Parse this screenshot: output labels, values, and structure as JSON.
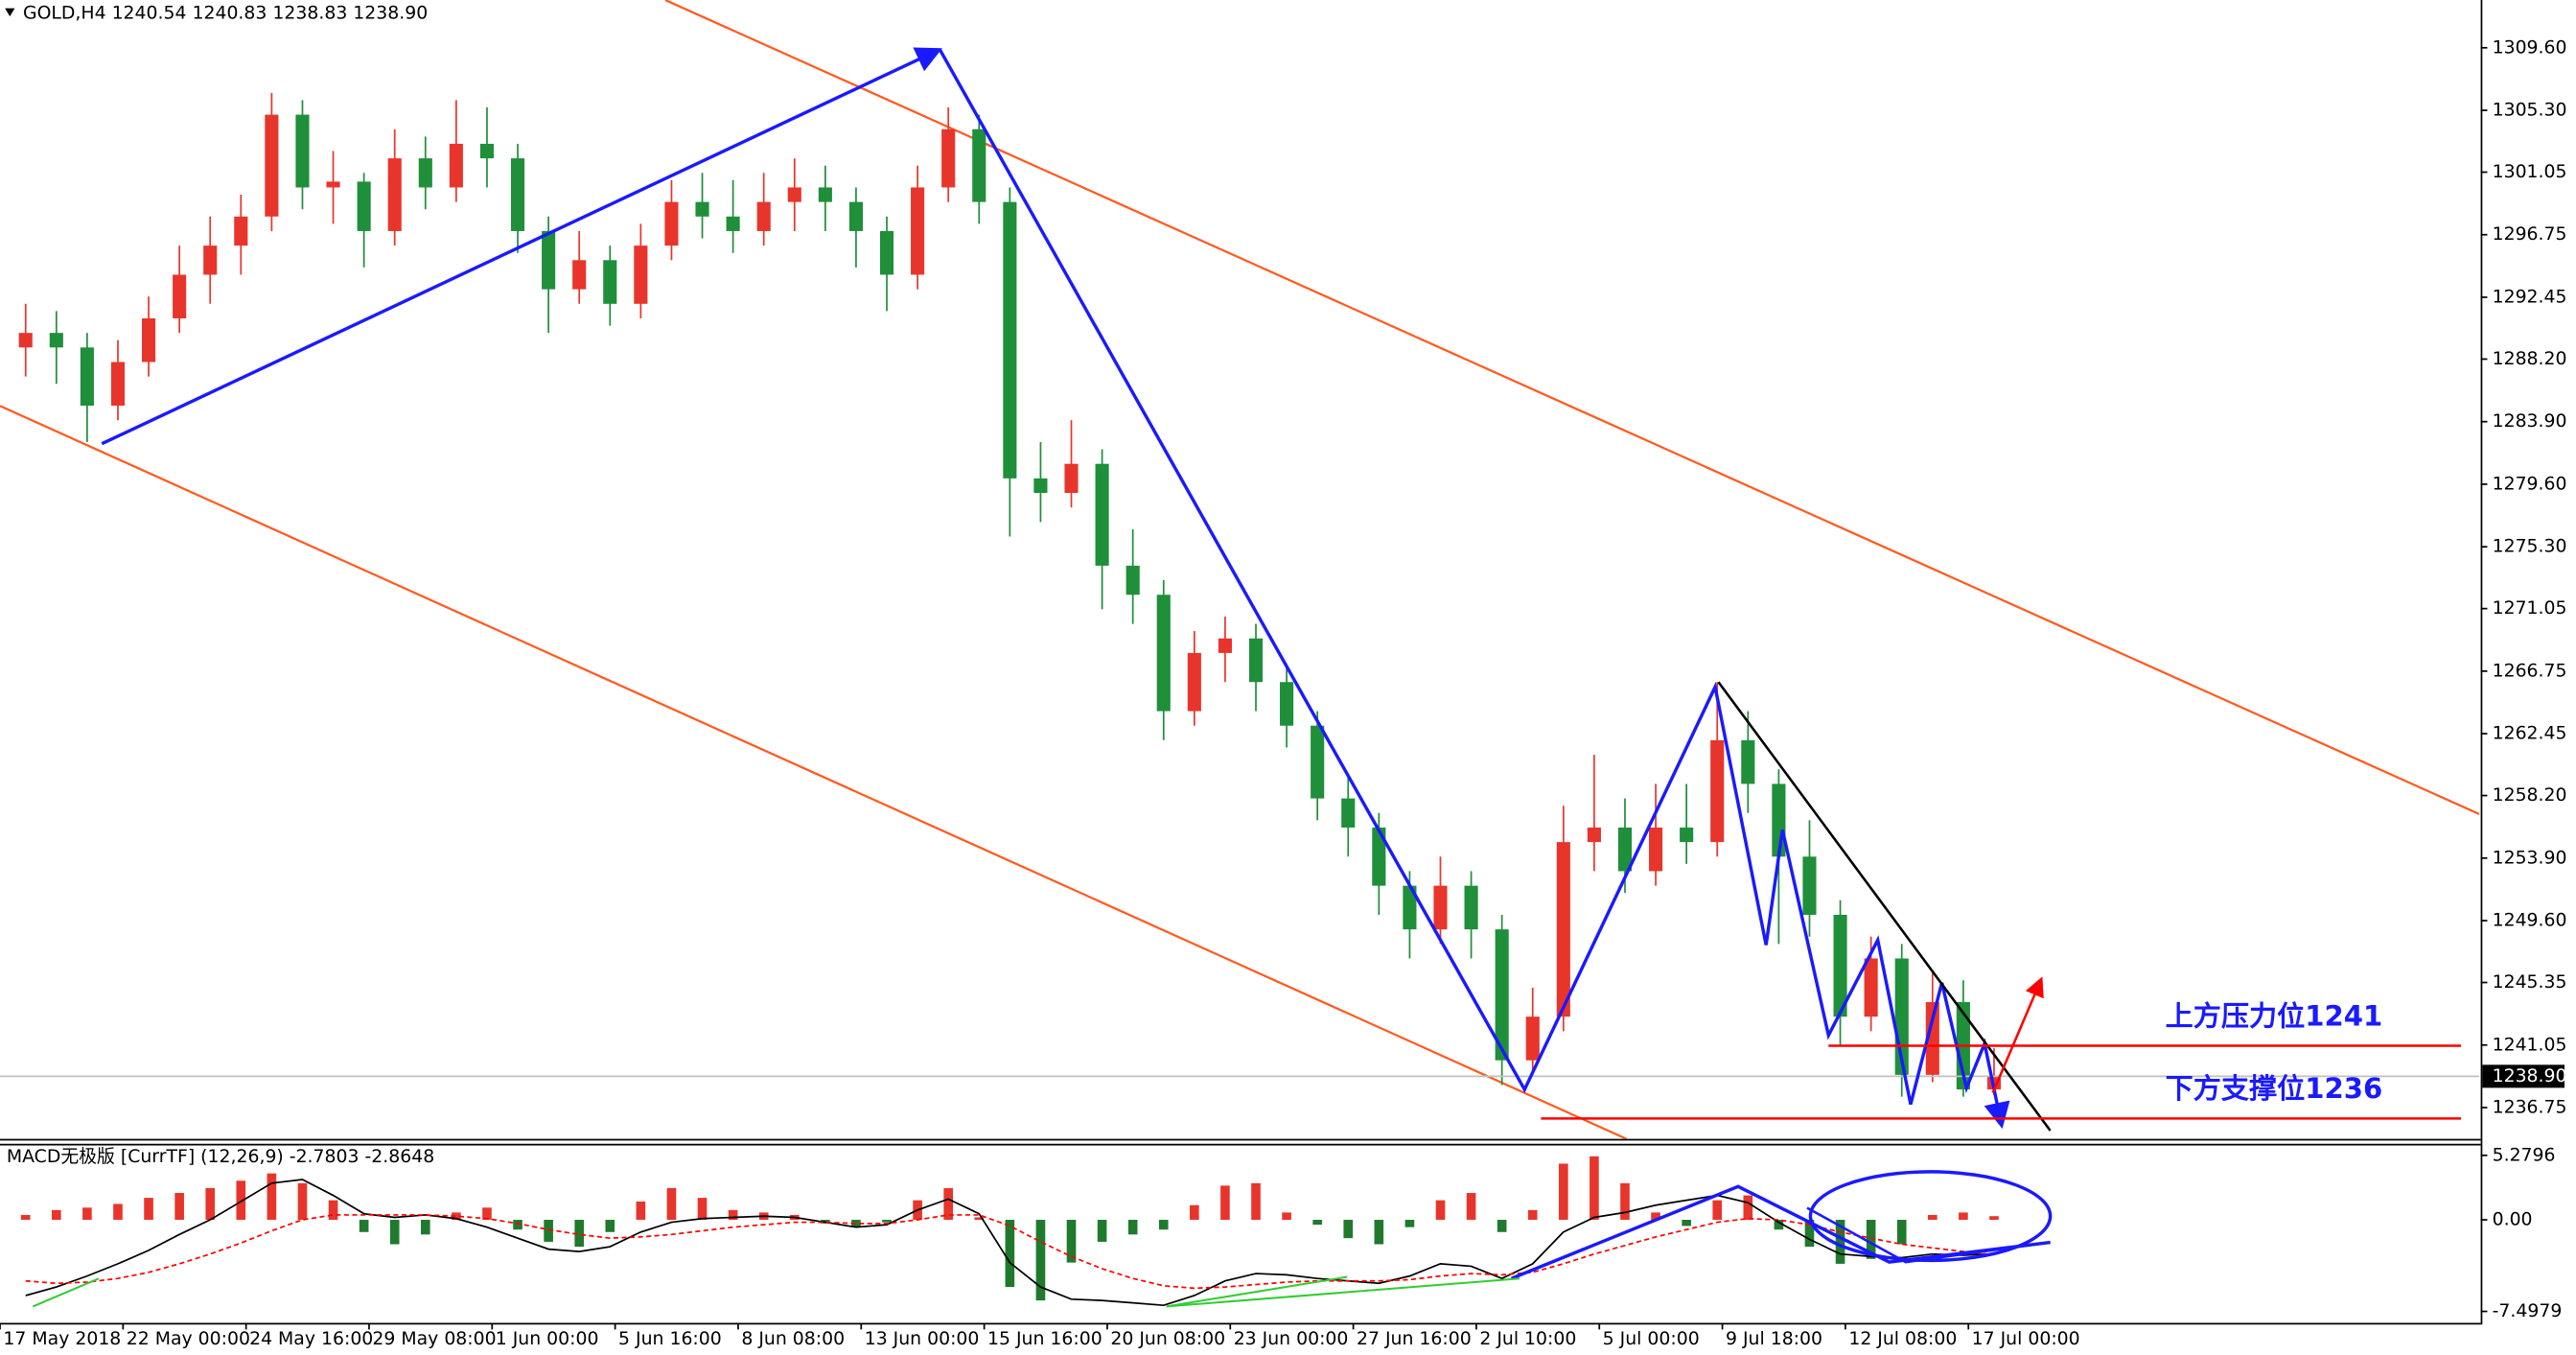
{
  "chart_data": [
    {
      "type": "candlestick",
      "title": "GOLD,H4  1240.54 1240.83 1238.83 1238.90",
      "up_color": "#e8352c",
      "down_color": "#1f8f3a",
      "grid": false,
      "xlim": [
        0,
        483.3
      ],
      "ylim": [
        1234.6,
        1312.88
      ],
      "xticks": [
        {
          "value": 0,
          "label": "17 May 2018"
        },
        {
          "value": 24,
          "label": "22 May 00:00"
        },
        {
          "value": 48,
          "label": "24 May 16:00"
        },
        {
          "value": 72,
          "label": "29 May 08:00"
        },
        {
          "value": 96,
          "label": "1 Jun 00:00"
        },
        {
          "value": 120,
          "label": "5 Jun 16:00"
        },
        {
          "value": 144,
          "label": "8 Jun 08:00"
        },
        {
          "value": 168,
          "label": "13 Jun 00:00"
        },
        {
          "value": 192,
          "label": "15 Jun 16:00"
        },
        {
          "value": 216,
          "label": "20 Jun 08:00"
        },
        {
          "value": 240,
          "label": "23 Jun 00:00"
        },
        {
          "value": 264,
          "label": "27 Jun 16:00"
        },
        {
          "value": 288,
          "label": "2 Jul 10:00"
        },
        {
          "value": 312,
          "label": "5 Jul 00:00"
        },
        {
          "value": 336,
          "label": "9 Jul 18:00"
        },
        {
          "value": 360,
          "label": "12 Jul 08:00"
        },
        {
          "value": 384,
          "label": "17 Jul 00:00"
        }
      ],
      "yticks": [
        {
          "value": 1309.6,
          "label": "1309.60"
        },
        {
          "value": 1305.3,
          "label": "1305.30"
        },
        1301.05,
        1296.75,
        1292.45,
        {
          "value": 1288.2,
          "label": "1288.20"
        },
        {
          "value": 1283.9,
          "label": "1283.90"
        },
        {
          "value": 1279.6,
          "label": "1279.60"
        },
        {
          "value": 1275.3,
          "label": "1275.30"
        },
        1271.05,
        1266.75,
        1262.45,
        {
          "value": 1258.2,
          "label": "1258.20"
        },
        {
          "value": 1253.9,
          "label": "1253.90"
        },
        {
          "value": 1249.6,
          "label": "1249.60"
        },
        1245.35,
        1241.05,
        1236.75
      ],
      "current_price": {
        "value": 1238.9,
        "label": "1238.90"
      },
      "levels": [
        {
          "value": 1241,
          "label": "上方压力位1241",
          "color": "#ff0000"
        },
        {
          "value": 1236,
          "label": "下方支撑位1236",
          "color": "#ff0000"
        }
      ],
      "x": [
        5,
        11,
        17,
        23,
        29,
        35,
        41,
        47,
        53,
        59,
        65,
        71,
        77,
        83,
        89,
        95,
        101,
        107,
        113,
        119,
        125,
        131,
        137,
        143,
        149,
        155,
        161,
        167,
        173,
        179,
        185,
        191,
        197,
        203,
        209,
        215,
        221,
        227,
        233,
        239,
        245,
        251,
        257,
        263,
        269,
        275,
        281,
        287,
        293,
        299,
        305,
        311,
        317,
        323,
        329,
        335,
        341,
        347,
        353,
        359,
        365,
        371,
        377,
        383,
        389
      ],
      "ohlc": [
        [
          1289,
          1292,
          1287,
          1290
        ],
        [
          1290,
          1291.5,
          1286.5,
          1289
        ],
        [
          1289,
          1290,
          1282.5,
          1285
        ],
        [
          1285,
          1289.5,
          1284,
          1288
        ],
        [
          1288,
          1292.5,
          1287,
          1291
        ],
        [
          1291,
          1296,
          1290,
          1294
        ],
        [
          1294,
          1298,
          1292,
          1296
        ],
        [
          1296,
          1299.5,
          1294,
          1298
        ],
        [
          1298,
          1306.5,
          1297,
          1305
        ],
        [
          1305,
          1306,
          1298.5,
          1300
        ],
        [
          1300,
          1302.5,
          1297.5,
          1300.4
        ],
        [
          1300.4,
          1301,
          1294.5,
          1297
        ],
        [
          1297,
          1304,
          1296,
          1302
        ],
        [
          1302,
          1303.5,
          1298.5,
          1300
        ],
        [
          1300,
          1306,
          1299,
          1303
        ],
        [
          1303,
          1305.5,
          1300,
          1302
        ],
        [
          1302,
          1303,
          1295.5,
          1297
        ],
        [
          1297,
          1298,
          1290,
          1293
        ],
        [
          1293,
          1297,
          1292,
          1295
        ],
        [
          1295,
          1296,
          1290.5,
          1292
        ],
        [
          1292,
          1297.5,
          1291,
          1296
        ],
        [
          1296,
          1300.5,
          1295,
          1299
        ],
        [
          1299,
          1301,
          1296.5,
          1298
        ],
        [
          1298,
          1300.5,
          1295.5,
          1297
        ],
        [
          1297,
          1301,
          1296,
          1299
        ],
        [
          1299,
          1302,
          1297,
          1300
        ],
        [
          1300,
          1301.5,
          1297,
          1299
        ],
        [
          1299,
          1300,
          1294.5,
          1297
        ],
        [
          1297,
          1298,
          1291.5,
          1294
        ],
        [
          1294,
          1301.5,
          1293,
          1300
        ],
        [
          1300,
          1305.5,
          1299,
          1304
        ],
        [
          1304,
          1305,
          1297.5,
          1299
        ],
        [
          1299,
          1300,
          1276,
          1280
        ],
        [
          1280,
          1282.5,
          1277,
          1279
        ],
        [
          1279,
          1284,
          1278,
          1281
        ],
        [
          1281,
          1282,
          1271,
          1274
        ],
        [
          1274,
          1276.5,
          1270,
          1272
        ],
        [
          1272,
          1273,
          1262,
          1264
        ],
        [
          1264,
          1269.5,
          1263,
          1268
        ],
        [
          1268,
          1270.5,
          1266,
          1269
        ],
        [
          1269,
          1270,
          1264,
          1266
        ],
        [
          1266,
          1267,
          1261.5,
          1263
        ],
        [
          1263,
          1264,
          1256.5,
          1258
        ],
        [
          1258,
          1259.5,
          1254,
          1256
        ],
        [
          1256,
          1257,
          1250,
          1252
        ],
        [
          1252,
          1253,
          1247,
          1249
        ],
        [
          1249,
          1254,
          1248,
          1252
        ],
        [
          1252,
          1253,
          1247,
          1249
        ],
        [
          1249,
          1250,
          1238.3,
          1240
        ],
        [
          1240,
          1245,
          1239,
          1243
        ],
        [
          1243,
          1257.5,
          1242,
          1255
        ],
        [
          1255,
          1261,
          1253,
          1256
        ],
        [
          1256,
          1258,
          1251.5,
          1253
        ],
        [
          1253,
          1259,
          1252,
          1256
        ],
        [
          1256,
          1259,
          1253.5,
          1255
        ],
        [
          1255,
          1266,
          1254,
          1262
        ],
        [
          1262,
          1264,
          1257,
          1259
        ],
        [
          1259,
          1260,
          1248,
          1254
        ],
        [
          1254,
          1256.5,
          1248.5,
          1250
        ],
        [
          1250,
          1251,
          1241,
          1243
        ],
        [
          1243,
          1248.5,
          1242,
          1247
        ],
        [
          1247,
          1248,
          1237.5,
          1239
        ],
        [
          1239,
          1246,
          1238.5,
          1244
        ],
        [
          1244,
          1245.5,
          1237.5,
          1238
        ],
        [
          1238,
          1240.83,
          1237.6,
          1238.9
        ]
      ]
    },
    {
      "type": "bar",
      "title": "MACD无极版 [CurrTF] (12,26,9) -2.7803 -2.8648",
      "pos_color": "#e8352c",
      "neg_color": "#1f7a2e",
      "ylim": [
        -8.44,
        6.09
      ],
      "yticks": [
        5.2796,
        {
          "value": 0,
          "label": "0.00"
        },
        -7.4979
      ],
      "values": [
        0.4,
        0.8,
        1.0,
        1.3,
        1.8,
        2.2,
        2.6,
        3.2,
        3.8,
        3.0,
        1.6,
        -1.0,
        -2.0,
        -1.2,
        0.6,
        1.0,
        -0.8,
        -1.8,
        -2.2,
        -1.0,
        1.5,
        2.6,
        1.8,
        0.8,
        0.6,
        0.4,
        -0.3,
        -0.6,
        -0.2,
        1.6,
        2.6,
        0.2,
        -5.5,
        -6.6,
        -3.5,
        -1.8,
        -1.2,
        -0.8,
        1.2,
        2.8,
        3.0,
        0.6,
        -0.4,
        -1.5,
        -2.0,
        -0.6,
        1.6,
        2.2,
        -1.0,
        0.8,
        4.6,
        5.2,
        3.0,
        0.6,
        -0.5,
        1.6,
        2.0,
        -0.8,
        -2.2,
        -3.6,
        -3.2,
        -2.0,
        0.4,
        0.6,
        0.3
      ],
      "series": [
        {
          "color": "#000000",
          "style": "solid",
          "values": [
            -6.2,
            -5.5,
            -4.6,
            -3.6,
            -2.5,
            -1.2,
            0,
            1.5,
            3.0,
            3.3,
            2.0,
            0.5,
            0.2,
            0.4,
            0.1,
            -0.6,
            -1.5,
            -2.4,
            -2.6,
            -2.2,
            -1.0,
            -0.2,
            0.1,
            0.2,
            0.3,
            0.2,
            -0.2,
            -0.6,
            -0.4,
            0.8,
            1.7,
            0.5,
            -3.5,
            -5.5,
            -6.5,
            -6.6,
            -6.8,
            -7.0,
            -6.2,
            -5.0,
            -4.4,
            -4.5,
            -4.8,
            -5.0,
            -5.2,
            -4.6,
            -3.6,
            -3.8,
            -4.8,
            -3.6,
            -1.0,
            0.2,
            0.6,
            1.2,
            1.6,
            2.0,
            1.4,
            -0.2,
            -1.6,
            -2.8,
            -3.0,
            -3.1,
            -2.8,
            -2.9,
            -2.7803
          ]
        },
        {
          "color": "#ff0000",
          "style": "dashed",
          "values": [
            -5.0,
            -5.2,
            -5.1,
            -4.8,
            -4.3,
            -3.6,
            -2.8,
            -1.9,
            -0.9,
            0.0,
            0.4,
            0.4,
            0.4,
            0.4,
            0.3,
            0.1,
            -0.3,
            -0.8,
            -1.2,
            -1.5,
            -1.4,
            -1.2,
            -0.9,
            -0.6,
            -0.4,
            -0.2,
            -0.2,
            -0.3,
            -0.3,
            0.0,
            0.4,
            0.4,
            -0.5,
            -1.8,
            -3.0,
            -4.0,
            -4.8,
            -5.4,
            -5.6,
            -5.5,
            -5.3,
            -5.1,
            -5.0,
            -5.0,
            -5.0,
            -4.9,
            -4.6,
            -4.4,
            -4.5,
            -4.3,
            -3.6,
            -2.8,
            -2.1,
            -1.4,
            -0.8,
            -0.2,
            0.1,
            0.0,
            -0.4,
            -1.0,
            -1.5,
            -2.0,
            -2.3,
            -2.6,
            -2.8648
          ]
        }
      ]
    }
  ]
}
